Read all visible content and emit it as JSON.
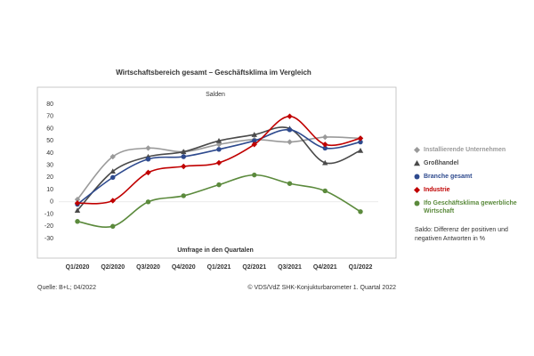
{
  "chart_data": {
    "type": "line",
    "title": "Wirtschaftsbereich gesamt – Geschäftsklima im Vergleich",
    "subtitle": "Salden",
    "x_label": "Umfrage in den Quartalen",
    "categories": [
      "Q1/2020",
      "Q2/2020",
      "Q3/2020",
      "Q4/2020",
      "Q1/2021",
      "Q2/2021",
      "Q3/2021",
      "Q4/2021",
      "Q1/2022"
    ],
    "series": [
      {
        "name": "Installierende Unternehmen",
        "color": "#9a9a9a",
        "marker": "diamond",
        "values": [
          2,
          37,
          44,
          41,
          47,
          51,
          49,
          53,
          52
        ]
      },
      {
        "name": "Großhandel",
        "color": "#4a4a4a",
        "marker": "triangle",
        "values": [
          -7,
          25,
          37,
          41,
          50,
          55,
          60,
          32,
          42
        ]
      },
      {
        "name": "Branche gesamt",
        "color": "#2e4a8e",
        "marker": "circle",
        "values": [
          -2,
          20,
          35,
          37,
          43,
          50,
          59,
          44,
          49
        ]
      },
      {
        "name": "Industrie",
        "color": "#c00000",
        "marker": "diamond",
        "values": [
          -1,
          1,
          24,
          29,
          32,
          47,
          70,
          47,
          52
        ]
      },
      {
        "name": "Ifo Geschäftsklima gewerbliche Wirtschaft",
        "color": "#5b8a3c",
        "marker": "circle",
        "values": [
          -16,
          -20,
          0,
          5,
          14,
          22,
          15,
          9,
          -8
        ]
      }
    ],
    "ylim": [
      -30,
      80
    ],
    "yticks": [
      80,
      70,
      60,
      50,
      40,
      30,
      20,
      10,
      0,
      -10,
      -20,
      -30
    ],
    "legend": "right",
    "note": "Saldo: Differenz der positiven und negativen Antworten in %",
    "source": "Quelle: B+L; 04/2022",
    "copyright": "© VDS/VdZ SHK-Konjukturbarometer 1. Quartal 2022"
  }
}
